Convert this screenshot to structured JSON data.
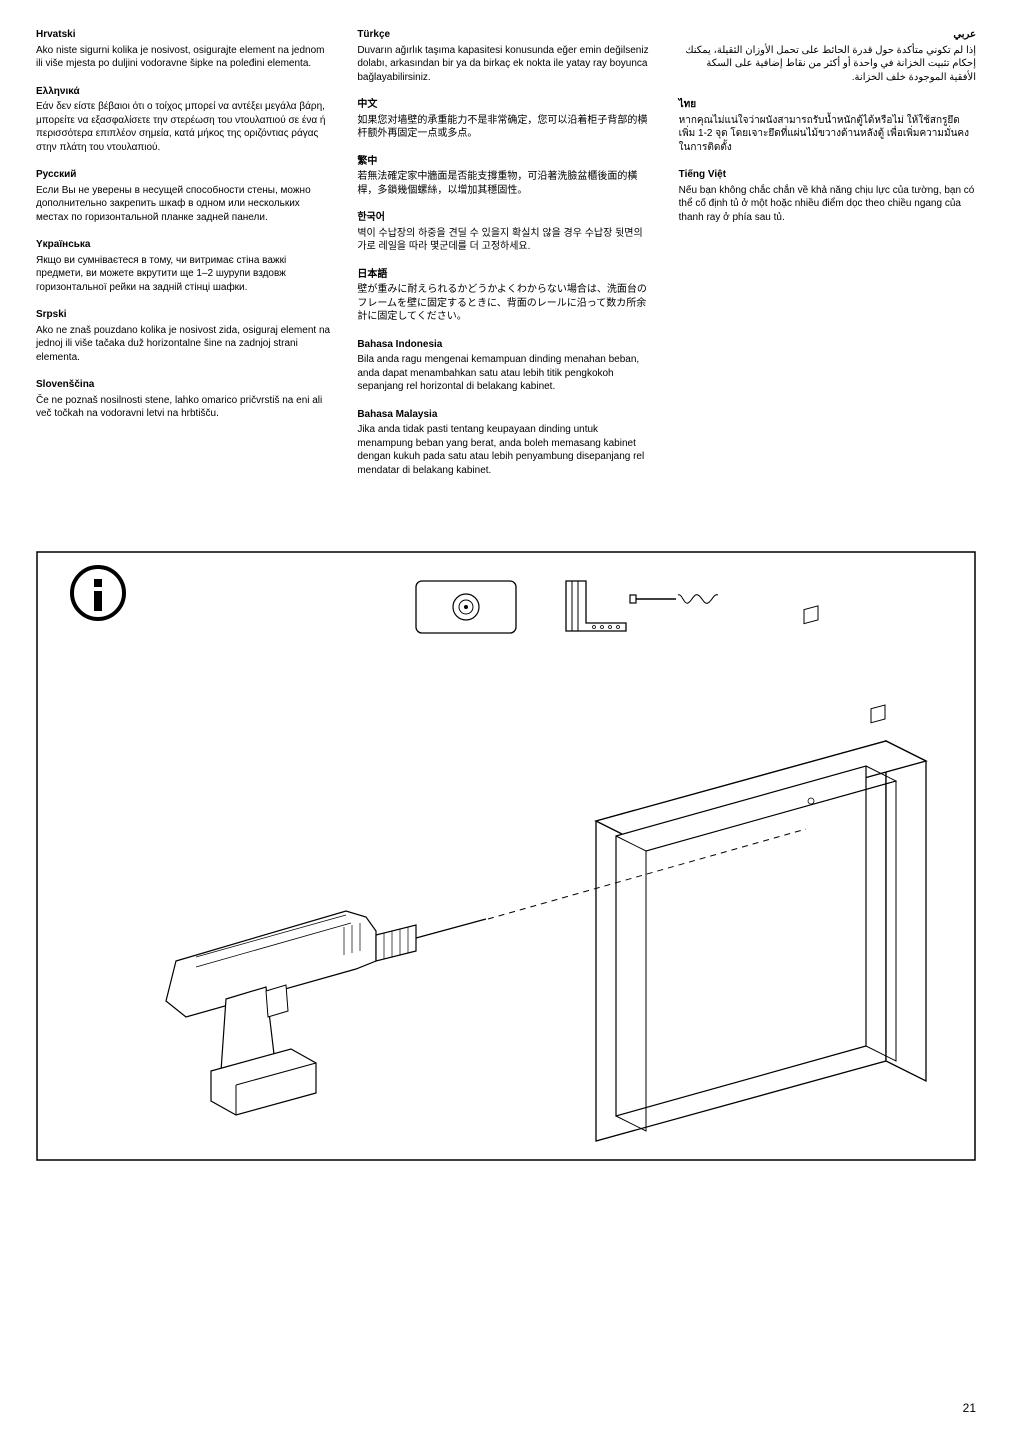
{
  "columns": [
    [
      {
        "lang": "Hrvatski",
        "text": "Ako niste sigurni kolika je nosivost, osigurajte element na jednom ili više mjesta po duljini vodoravne šipke na poleđini elementa."
      },
      {
        "lang": "Ελληνικά",
        "text": "Εάν δεν είστε βέβαιοι ότι ο τοίχος μπορεί να αντέξει μεγάλα βάρη, μπορείτε να εξασφαλίσετε την στερέωση του ντουλαπιού σε ένα ή περισσότερα επιπλέον σημεία, κατά μήκος της οριζόντιας ράγας στην πλάτη του ντουλαπιού."
      },
      {
        "lang": "Русский",
        "text": "Если Вы не уверены в несущей способности стены, можно дополнительно закрепить шкаф в одном или нескольких местах по горизонтальной планке задней панели."
      },
      {
        "lang": "Yкраїнська",
        "text": "Якщо ви сумніваєтеся в тому, чи витримає стіна важкі предмети, ви можете вкрутити ще 1–2 шурупи вздовж горизонтальної рейки на задній стінці шафки."
      },
      {
        "lang": "Srpski",
        "text": "Ako ne znaš pouzdano kolika je nosivost zida, osiguraj element na jednoj ili više tačaka duž horizontalne šine na zadnjoj strani elementa."
      },
      {
        "lang": "Slovenščina",
        "text": "Če ne poznaš nosilnosti stene, lahko omarico pričvrstiš na eni ali več točkah na vodoravni letvi na hrbtišču."
      }
    ],
    [
      {
        "lang": "Türkçe",
        "text": "Duvarın ağırlık taşıma kapasitesi konusunda eğer emin değilseniz dolabı, arkasından bir ya da birkaç ek nokta ile yatay ray boyunca bağlayabilirsiniz."
      },
      {
        "lang": "中文",
        "text": "如果您对墙壁的承重能力不是非常确定，您可以沿着柜子背部的横杆额外再固定一点或多点。"
      },
      {
        "lang": "繁中",
        "text": "若無法確定家中牆面是否能支撐重物，可沿著洗臉盆櫃後面的橫桿，多鎖幾個螺絲，以增加其穩固性。"
      },
      {
        "lang": "한국어",
        "text": "벽이 수납장의 하중을 견딜 수 있을지 확실치 않을 경우 수납장 뒷면의 가로 레일을 따라 몇군데를 더 고정하세요."
      },
      {
        "lang": "日本語",
        "text": "壁が重みに耐えられるかどうかよくわからない場合は、洗面台のフレームを壁に固定するときに、背面のレールに沿って数カ所余計に固定してください。"
      },
      {
        "lang": "Bahasa Indonesia",
        "text": "Bila anda ragu mengenai kemampuan dinding menahan beban, anda dapat menambahkan satu atau lebih titik pengkokoh sepanjang rel horizontal di belakang kabinet."
      },
      {
        "lang": "Bahasa Malaysia",
        "text": "Jika anda tidak pasti tentang keupayaan dinding untuk menampung beban yang berat, anda boleh memasang kabinet dengan kukuh pada satu atau lebih penyambung disepanjang rel mendatar di belakang kabinet."
      }
    ],
    [
      {
        "lang": "عربي",
        "text": "إذا لم تكوني متأكدة حول قدرة الحائط على تحمل الأوزان الثقيلة، يمكنك إحكام تثبيت الخزانة في واحدة أو أكثر من نقاط إضافية على السكة الأفقية الموجودة خلف الخزانة.",
        "rtl": true
      },
      {
        "lang": "ไทย",
        "text": "หากคุณไม่แน่ใจว่าผนังสามารถรับน้ำหนักตู้ได้หรือไม่ ให้ใช้สกรูยึดเพิ่ม 1-2 จุด โดยเจาะยึดที่แผ่นไม้ขวางด้านหลังตู้ เพื่อเพิ่มความมั่นคงในการติดตั้ง"
      },
      {
        "lang": "Tiếng Việt",
        "text": "Nếu bạn không chắc chắn về khả năng chịu lực của tường, bạn có thể cố định tủ ở một hoặc nhiều điểm dọc theo chiều ngang của thanh ray ở phía sau tủ."
      }
    ]
  ],
  "page_number": "21"
}
